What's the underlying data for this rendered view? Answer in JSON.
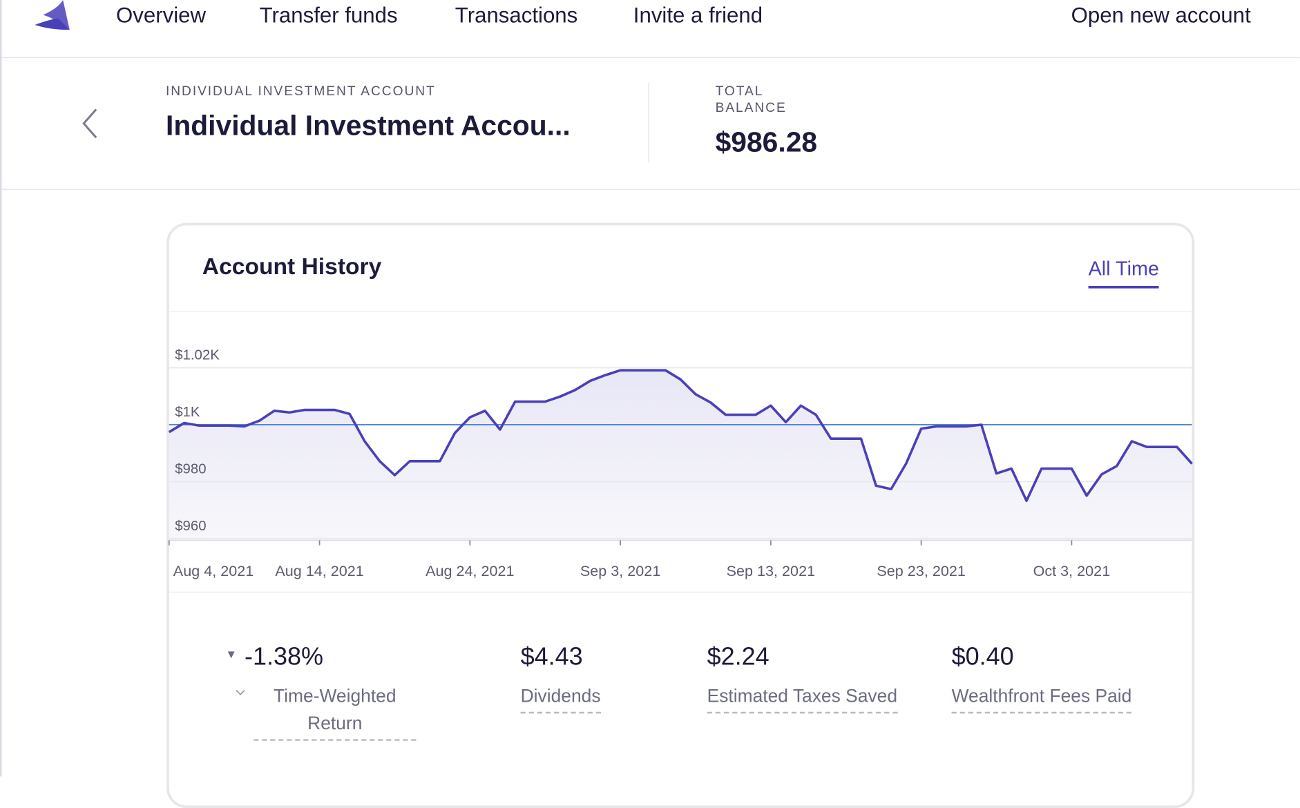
{
  "nav": {
    "items": [
      "Overview",
      "Transfer funds",
      "Transactions",
      "Invite a friend"
    ],
    "action": "Open new account"
  },
  "account": {
    "eyebrow": "INDIVIDUAL INVESTMENT ACCOUNT",
    "title": "Individual Investment Accou...",
    "balance_label_1": "TOTAL",
    "balance_label_2": "BALANCE",
    "balance": "$986.28"
  },
  "chart": {
    "type": "line",
    "title": "Account History",
    "range": "All Time",
    "color": "#4a40b8",
    "reference_value": 1000,
    "reference_color": "#3a7bd5",
    "x": [
      "2021-08-04",
      "2021-08-05",
      "2021-08-06",
      "2021-08-07",
      "2021-08-08",
      "2021-08-09",
      "2021-08-10",
      "2021-08-11",
      "2021-08-12",
      "2021-08-13",
      "2021-08-14",
      "2021-08-15",
      "2021-08-16",
      "2021-08-17",
      "2021-08-18",
      "2021-08-19",
      "2021-08-20",
      "2021-08-21",
      "2021-08-22",
      "2021-08-23",
      "2021-08-24",
      "2021-08-25",
      "2021-08-26",
      "2021-08-27",
      "2021-08-28",
      "2021-08-29",
      "2021-08-30",
      "2021-08-31",
      "2021-09-01",
      "2021-09-02",
      "2021-09-03",
      "2021-09-04",
      "2021-09-05",
      "2021-09-06",
      "2021-09-07",
      "2021-09-08",
      "2021-09-09",
      "2021-09-10",
      "2021-09-11",
      "2021-09-12",
      "2021-09-13",
      "2021-09-14",
      "2021-09-15",
      "2021-09-16",
      "2021-09-17",
      "2021-09-18",
      "2021-09-19",
      "2021-09-20",
      "2021-09-21",
      "2021-09-22",
      "2021-09-23",
      "2021-09-24",
      "2021-09-25",
      "2021-09-26",
      "2021-09-27",
      "2021-09-28",
      "2021-09-29",
      "2021-09-30",
      "2021-10-01",
      "2021-10-02",
      "2021-10-03",
      "2021-10-04",
      "2021-10-05",
      "2021-10-06",
      "2021-10-07",
      "2021-10-08",
      "2021-10-09",
      "2021-10-10",
      "2021-10-11"
    ],
    "values": [
      997.4,
      1000.6,
      999.7,
      999.7,
      999.7,
      999.4,
      1001.4,
      1004.9,
      1004.3,
      1005.2,
      1005.2,
      1005.2,
      1003.8,
      994.2,
      987.2,
      982.3,
      987.2,
      987.2,
      987.2,
      997.1,
      1002.6,
      1004.9,
      998.3,
      1008.1,
      1008.1,
      1008.1,
      1009.9,
      1012.2,
      1015.4,
      1017.4,
      1019.1,
      1019.1,
      1019.1,
      1019.1,
      1015.9,
      1010.7,
      1007.8,
      1003.5,
      1003.5,
      1003.5,
      1006.7,
      1000.9,
      1006.7,
      1003.5,
      995.1,
      995.1,
      995.1,
      978.6,
      977.4,
      986.4,
      998.6,
      999.4,
      999.4,
      999.4,
      1000,
      982.9,
      984.6,
      973.3,
      984.6,
      984.6,
      984.6,
      975.1,
      982.6,
      985.5,
      994.2,
      992.2,
      992.2,
      992.2,
      986.3
    ],
    "xlim": [
      "2021-08-04",
      "2021-10-11"
    ],
    "xticks": [
      {
        "value": "2021-08-04",
        "label": "Aug 4, 2021"
      },
      {
        "value": "2021-08-14",
        "label": "Aug 14, 2021"
      },
      {
        "value": "2021-08-24",
        "label": "Aug 24, 2021"
      },
      {
        "value": "2021-09-03",
        "label": "Sep 3, 2021"
      },
      {
        "value": "2021-09-13",
        "label": "Sep 13, 2021"
      },
      {
        "value": "2021-09-23",
        "label": "Sep 23, 2021"
      },
      {
        "value": "2021-10-03",
        "label": "Oct 3, 2021"
      }
    ],
    "ylim": [
      960,
      1040
    ],
    "yticks": [
      {
        "value": 960,
        "label": "$960"
      },
      {
        "value": 980,
        "label": "$980"
      },
      {
        "value": 1000,
        "label": "$1K"
      },
      {
        "value": 1020,
        "label": "$1.02K"
      }
    ],
    "grid": true
  },
  "stats": [
    {
      "value": "-1.38%",
      "label": "Time-Weighted Return"
    },
    {
      "value": "$4.43",
      "label": "Dividends"
    },
    {
      "value": "$2.24",
      "label": "Estimated Taxes Saved"
    },
    {
      "value": "$0.40",
      "label": "Wealthfront Fees Paid"
    }
  ]
}
